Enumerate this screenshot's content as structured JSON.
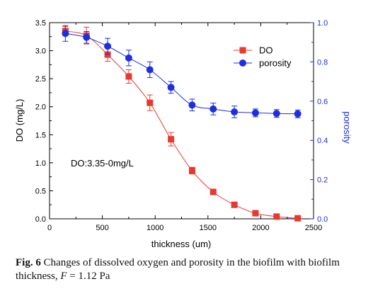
{
  "chart_data": {
    "type": "line",
    "xlabel": "thickness (um)",
    "ylabel_left": "DO (mg/L)",
    "ylabel_right": "porosity",
    "xlim": [
      0,
      2500
    ],
    "ylim_left": [
      0,
      3.5
    ],
    "ylim_right": [
      0,
      1.0
    ],
    "xticks": [
      "0",
      "500",
      "1000",
      "1500",
      "2000",
      "2500"
    ],
    "yticks_left": [
      "0.0",
      "0.5",
      "1.0",
      "1.5",
      "2.0",
      "2.5",
      "3.0",
      "3.5"
    ],
    "yticks_right": [
      "0.0",
      "0.2",
      "0.4",
      "0.6",
      "0.8",
      "1.0"
    ],
    "legend_position": "top-right",
    "grid": false,
    "annotation": "DO:3.35-0mg/L",
    "series": [
      {
        "name": "DO",
        "axis": "left",
        "marker": "square",
        "color": "#e8392f",
        "x": [
          150,
          350,
          550,
          750,
          950,
          1150,
          1350,
          1550,
          1750,
          1950,
          2150,
          2350
        ],
        "y": [
          3.35,
          3.27,
          2.93,
          2.54,
          2.07,
          1.42,
          0.86,
          0.48,
          0.25,
          0.1,
          0.04,
          0.01
        ],
        "err": [
          0.08,
          0.15,
          0.12,
          0.12,
          0.14,
          0.12,
          0.06,
          0.05,
          0.03,
          0.03,
          0.02,
          0.01
        ]
      },
      {
        "name": "porosity",
        "axis": "right",
        "marker": "circle",
        "color": "#1f2ee0",
        "x": [
          150,
          350,
          550,
          750,
          950,
          1150,
          1350,
          1550,
          1750,
          1950,
          2150,
          2350
        ],
        "y": [
          0.945,
          0.925,
          0.88,
          0.82,
          0.76,
          0.67,
          0.58,
          0.56,
          0.545,
          0.54,
          0.537,
          0.535
        ],
        "err": [
          0.04,
          0.03,
          0.04,
          0.04,
          0.04,
          0.03,
          0.03,
          0.03,
          0.03,
          0.02,
          0.02,
          0.02
        ]
      }
    ]
  },
  "caption": {
    "label": "Fig. 6",
    "text": "Changes of dissolved oxygen and porosity in the biofilm with biofilm thickness,",
    "var": "F",
    "value": "= 1.12 Pa"
  }
}
